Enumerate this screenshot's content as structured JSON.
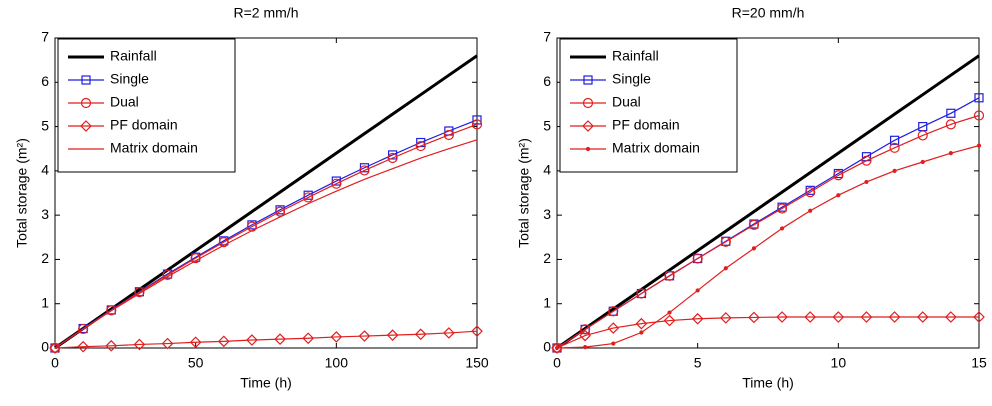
{
  "chart_data": [
    {
      "type": "line",
      "title": "R=2 mm/h",
      "xlabel": "Time (h)",
      "ylabel": "Total storage (m²)",
      "x": [
        0,
        10,
        20,
        30,
        40,
        50,
        60,
        70,
        80,
        90,
        100,
        110,
        120,
        130,
        140,
        150
      ],
      "xlim": [
        0,
        150
      ],
      "xticks": [
        0,
        50,
        100,
        150
      ],
      "ylim": [
        0,
        7
      ],
      "yticks": [
        0,
        1,
        2,
        3,
        4,
        5,
        6,
        7
      ],
      "grid": false,
      "legend": "upper left",
      "series": [
        {
          "name": "Rainfall",
          "color": "#000000",
          "marker": "none",
          "width": 3,
          "values": [
            0,
            0.44,
            0.88,
            1.32,
            1.76,
            2.2,
            2.64,
            3.08,
            3.52,
            3.96,
            4.4,
            4.84,
            5.28,
            5.72,
            6.16,
            6.6
          ]
        },
        {
          "name": "Single",
          "color": "#1f1fe0",
          "marker": "square",
          "width": 1.2,
          "values": [
            0,
            0.44,
            0.86,
            1.27,
            1.67,
            2.05,
            2.42,
            2.78,
            3.12,
            3.45,
            3.77,
            4.07,
            4.36,
            4.64,
            4.9,
            5.15
          ]
        },
        {
          "name": "Dual",
          "color": "#e01f1f",
          "marker": "circle",
          "width": 1.2,
          "values": [
            0,
            0.43,
            0.85,
            1.26,
            1.65,
            2.03,
            2.39,
            2.74,
            3.08,
            3.4,
            3.71,
            4.01,
            4.29,
            4.56,
            4.81,
            5.05
          ]
        },
        {
          "name": "PF domain",
          "color": "#e01f1f",
          "marker": "diamond",
          "width": 1.2,
          "values": [
            0,
            0.03,
            0.05,
            0.08,
            0.1,
            0.13,
            0.15,
            0.18,
            0.2,
            0.22,
            0.25,
            0.27,
            0.29,
            0.31,
            0.34,
            0.38
          ]
        },
        {
          "name": "Matrix domain",
          "color": "#e01f1f",
          "marker": "none",
          "width": 1.2,
          "values": [
            0,
            0.43,
            0.84,
            1.23,
            1.61,
            1.97,
            2.32,
            2.65,
            2.96,
            3.26,
            3.54,
            3.81,
            4.05,
            4.29,
            4.5,
            4.7
          ]
        }
      ]
    },
    {
      "type": "line",
      "title": "R=20 mm/h",
      "xlabel": "Time (h)",
      "ylabel": "Total storage (m²)",
      "x": [
        0,
        1,
        2,
        3,
        4,
        5,
        6,
        7,
        8,
        9,
        10,
        11,
        12,
        13,
        14,
        15
      ],
      "xlim": [
        0,
        15
      ],
      "xticks": [
        0,
        5,
        10,
        15
      ],
      "ylim": [
        0,
        7
      ],
      "yticks": [
        0,
        1,
        2,
        3,
        4,
        5,
        6,
        7
      ],
      "grid": false,
      "legend": "upper left",
      "series": [
        {
          "name": "Rainfall",
          "color": "#000000",
          "marker": "none",
          "width": 3,
          "values": [
            0,
            0.44,
            0.88,
            1.32,
            1.76,
            2.2,
            2.64,
            3.08,
            3.52,
            3.96,
            4.4,
            4.84,
            5.28,
            5.72,
            6.16,
            6.6
          ]
        },
        {
          "name": "Single",
          "color": "#1f1fe0",
          "marker": "square",
          "width": 1.2,
          "values": [
            0,
            0.42,
            0.83,
            1.23,
            1.63,
            2.02,
            2.41,
            2.8,
            3.18,
            3.56,
            3.94,
            4.32,
            4.69,
            5.0,
            5.3,
            5.65
          ]
        },
        {
          "name": "Dual",
          "color": "#e01f1f",
          "marker": "circle",
          "width": 1.2,
          "values": [
            0,
            0.42,
            0.83,
            1.23,
            1.63,
            2.02,
            2.4,
            2.78,
            3.15,
            3.52,
            3.9,
            4.23,
            4.52,
            4.8,
            5.05,
            5.25
          ]
        },
        {
          "name": "PF domain",
          "color": "#e01f1f",
          "marker": "diamond",
          "width": 1.2,
          "values": [
            0,
            0.28,
            0.45,
            0.55,
            0.62,
            0.66,
            0.68,
            0.69,
            0.7,
            0.7,
            0.7,
            0.7,
            0.7,
            0.7,
            0.7,
            0.7
          ]
        },
        {
          "name": "Matrix domain",
          "color": "#e01f1f",
          "marker": "dot",
          "width": 1.2,
          "values": [
            0,
            0.02,
            0.1,
            0.35,
            0.8,
            1.3,
            1.8,
            2.25,
            2.7,
            3.1,
            3.45,
            3.75,
            4.0,
            4.2,
            4.4,
            4.57
          ]
        }
      ]
    }
  ]
}
